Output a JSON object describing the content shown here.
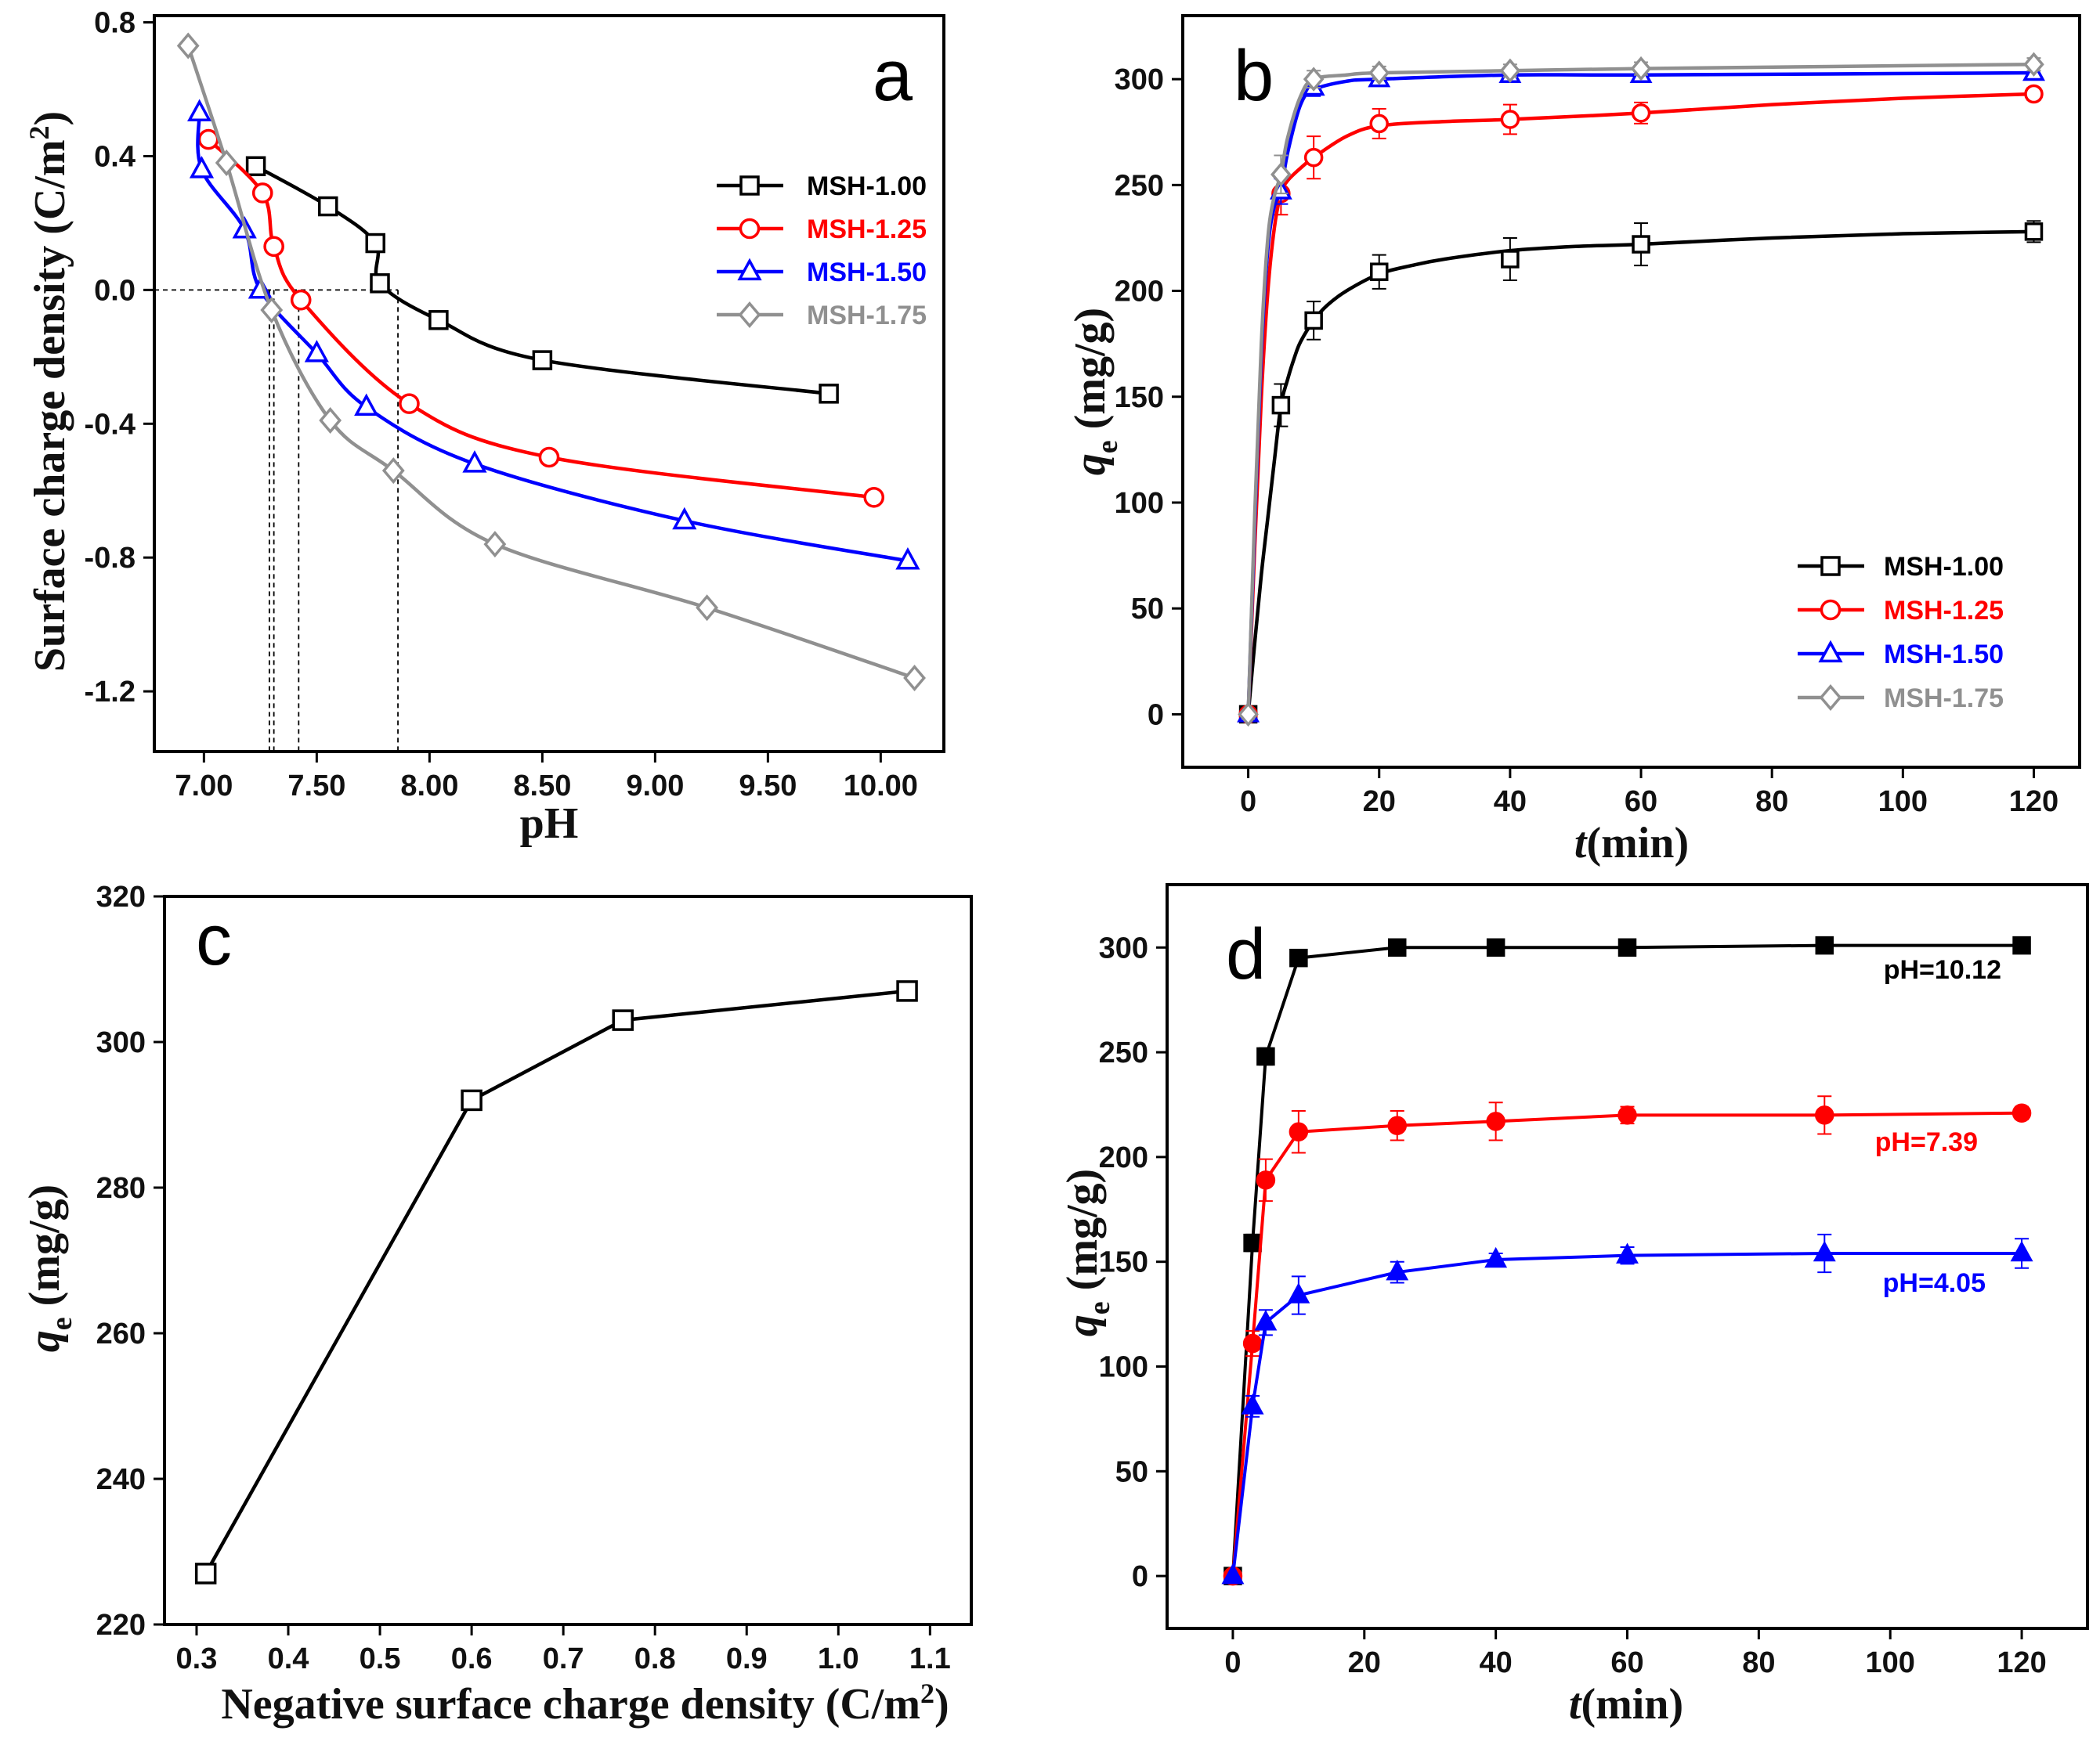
{
  "chart_data": [
    {
      "panel": "a",
      "type": "line",
      "xlabel": "pH",
      "ylabel": "Surface charge density (C/m²)",
      "xlim": [
        6.78,
        10.28
      ],
      "ylim": [
        -1.38,
        0.82
      ],
      "xticks": [
        "7.00",
        "7.50",
        "8.00",
        "8.50",
        "9.00",
        "9.50",
        "10.00"
      ],
      "xtick_values": [
        7.0,
        7.5,
        8.0,
        8.5,
        9.0,
        9.5,
        10.0
      ],
      "yticks": [
        "0.8",
        "0.4",
        "0.0",
        "-0.4",
        "-0.8",
        "-1.2"
      ],
      "ytick_values": [
        0.8,
        0.4,
        0.0,
        -0.4,
        -0.8,
        -1.2
      ],
      "zero_line": true,
      "pzc": [
        7.29,
        7.31,
        7.42,
        7.86
      ],
      "series": [
        {
          "name": "MSH-1.00",
          "color": "#000000",
          "marker": "square",
          "x": [
            7.23,
            7.55,
            7.76,
            7.78,
            8.04,
            8.5,
            9.77
          ],
          "y": [
            0.37,
            0.25,
            0.14,
            0.02,
            -0.09,
            -0.21,
            -0.31
          ]
        },
        {
          "name": "MSH-1.25",
          "color": "#ff0000",
          "marker": "circle",
          "x": [
            7.02,
            7.26,
            7.31,
            7.43,
            7.91,
            8.53,
            9.97
          ],
          "y": [
            0.45,
            0.29,
            0.13,
            -0.03,
            -0.34,
            -0.5,
            -0.62
          ]
        },
        {
          "name": "MSH-1.50",
          "color": "#0000ff",
          "marker": "triangle",
          "x": [
            6.98,
            6.99,
            7.18,
            7.25,
            7.5,
            7.72,
            8.2,
            9.13,
            10.12
          ],
          "y": [
            0.53,
            0.36,
            0.18,
            0.0,
            -0.19,
            -0.35,
            -0.52,
            -0.69,
            -0.81
          ]
        },
        {
          "name": "MSH-1.75",
          "color": "#909090",
          "marker": "diamond",
          "x": [
            6.93,
            7.1,
            7.3,
            7.56,
            7.84,
            8.29,
            9.23,
            10.15
          ],
          "y": [
            0.73,
            0.38,
            -0.06,
            -0.39,
            -0.54,
            -0.76,
            -0.95,
            -1.16
          ]
        }
      ]
    },
    {
      "panel": "b",
      "type": "line",
      "xlabel_italic": "t",
      "xlabel_rest": "(min)",
      "ylabel_main": "q",
      "ylabel_sub": "e",
      "ylabel_rest": " (mg/g)",
      "xlim": [
        -10,
        127
      ],
      "ylim": [
        -25,
        330
      ],
      "xticks": [
        "0",
        "20",
        "40",
        "60",
        "80",
        "100",
        "120"
      ],
      "xtick_values": [
        0,
        20,
        40,
        60,
        80,
        100,
        120
      ],
      "yticks": [
        "0",
        "50",
        "100",
        "150",
        "200",
        "250",
        "300"
      ],
      "ytick_values": [
        0,
        50,
        100,
        150,
        200,
        250,
        300
      ],
      "series": [
        {
          "name": "MSH-1.00",
          "color": "#000000",
          "marker": "square",
          "x": [
            0,
            5,
            10,
            20,
            40,
            60,
            120
          ],
          "y": [
            0,
            146,
            186,
            209,
            215,
            222,
            228
          ],
          "err": [
            0,
            10,
            9,
            8,
            10,
            10,
            5
          ],
          "curve_x": [
            0,
            1,
            2,
            3,
            4,
            5,
            6,
            7,
            8,
            10,
            12,
            15,
            20,
            25,
            30,
            40,
            50,
            60,
            80,
            100,
            120
          ],
          "curve_y": [
            0,
            34,
            66,
            93,
            120,
            146,
            158,
            168,
            176,
            186,
            193,
            200,
            208,
            212,
            215,
            219,
            221,
            222,
            225,
            227,
            228
          ]
        },
        {
          "name": "MSH-1.25",
          "color": "#ff0000",
          "marker": "circle",
          "x": [
            0,
            5,
            10,
            20,
            40,
            60,
            120
          ],
          "y": [
            0,
            246,
            263,
            279,
            281,
            284,
            293
          ],
          "err": [
            0,
            10,
            10,
            7,
            7,
            5,
            3
          ],
          "curve_x": [
            0,
            1,
            2,
            3,
            4,
            5,
            6,
            8,
            10,
            15,
            20,
            30,
            40,
            60,
            80,
            100,
            120
          ],
          "curve_y": [
            0,
            80,
            150,
            200,
            230,
            246,
            252,
            258,
            263,
            273,
            278,
            280,
            281,
            284,
            288,
            291,
            293
          ]
        },
        {
          "name": "MSH-1.50",
          "color": "#0000ff",
          "marker": "triangle",
          "x": [
            0,
            5,
            10,
            20,
            40,
            60,
            120
          ],
          "y": [
            0,
            247,
            296,
            300,
            302,
            302,
            303
          ],
          "err": [
            0,
            6,
            4,
            3,
            3,
            3,
            3
          ],
          "curve_x": [
            0,
            1,
            2,
            3,
            4,
            5,
            6,
            8,
            10,
            15,
            20,
            40,
            60,
            120
          ],
          "curve_y": [
            0,
            90,
            170,
            220,
            240,
            247,
            265,
            288,
            295,
            299,
            300,
            302,
            302,
            303
          ]
        },
        {
          "name": "MSH-1.75",
          "color": "#909090",
          "marker": "diamond",
          "x": [
            0,
            5,
            10,
            20,
            40,
            60,
            120
          ],
          "y": [
            0,
            255,
            300,
            303,
            304,
            305,
            307
          ],
          "err": [
            0,
            9,
            4,
            3,
            3,
            3,
            3
          ],
          "curve_x": [
            0,
            1,
            2,
            3,
            4,
            5,
            6,
            8,
            10,
            15,
            20,
            40,
            60,
            120
          ],
          "curve_y": [
            0,
            95,
            175,
            225,
            245,
            255,
            272,
            292,
            300,
            302,
            303,
            304,
            305,
            307
          ]
        }
      ]
    },
    {
      "panel": "c",
      "type": "line",
      "xlabel": "Negative surface charge density (C/m²)",
      "ylabel_main": "q",
      "ylabel_sub": "e",
      "ylabel_rest": " (mg/g)",
      "xlim": [
        0.265,
        1.145
      ],
      "ylim": [
        220,
        320
      ],
      "xticks": [
        "0.3",
        "0.4",
        "0.5",
        "0.6",
        "0.7",
        "0.8",
        "0.9",
        "1.0",
        "1.1"
      ],
      "xtick_values": [
        0.3,
        0.4,
        0.5,
        0.6,
        0.7,
        0.8,
        0.9,
        1.0,
        1.1
      ],
      "yticks": [
        "220",
        "240",
        "260",
        "280",
        "300",
        "320"
      ],
      "ytick_values": [
        220,
        240,
        260,
        280,
        300,
        320
      ],
      "series": [
        {
          "name": "qe",
          "color": "#000000",
          "marker": "square",
          "x": [
            0.31,
            0.6,
            0.765,
            1.075
          ],
          "y": [
            227,
            292,
            303,
            307
          ]
        }
      ]
    },
    {
      "panel": "d",
      "type": "line",
      "xlabel_italic": "t",
      "xlabel_rest": "(min)",
      "ylabel_main": "q",
      "ylabel_sub": "e",
      "ylabel_rest": " (mg/g)",
      "xlim": [
        -10,
        130
      ],
      "ylim": [
        -25,
        330
      ],
      "xticks": [
        "0",
        "20",
        "40",
        "60",
        "80",
        "100",
        "120"
      ],
      "xtick_values": [
        0,
        20,
        40,
        60,
        80,
        100,
        120
      ],
      "yticks": [
        "0",
        "50",
        "100",
        "150",
        "200",
        "250",
        "300"
      ],
      "ytick_values": [
        0,
        50,
        100,
        150,
        200,
        250,
        300
      ],
      "series": [
        {
          "name": "pH=10.12",
          "color": "#000000",
          "marker": "filled-square",
          "x": [
            0,
            3,
            5,
            10,
            25,
            40,
            60,
            90,
            120
          ],
          "y": [
            0,
            159,
            248,
            295,
            300,
            300,
            300,
            301,
            301
          ],
          "err": [
            0,
            4,
            4,
            3,
            2,
            2,
            2,
            2,
            2
          ]
        },
        {
          "name": "pH=7.39",
          "color": "#ff0000",
          "marker": "filled-circle",
          "x": [
            0,
            3,
            5,
            10,
            25,
            40,
            60,
            90,
            120
          ],
          "y": [
            0,
            111,
            189,
            212,
            215,
            217,
            220,
            220,
            221
          ],
          "err": [
            0,
            6,
            10,
            10,
            7,
            9,
            4,
            9,
            3
          ]
        },
        {
          "name": "pH=4.05",
          "color": "#0000ff",
          "marker": "filled-triangle",
          "x": [
            0,
            3,
            5,
            10,
            25,
            40,
            60,
            90,
            120
          ],
          "y": [
            0,
            81,
            121,
            134,
            145,
            151,
            153,
            154,
            154
          ],
          "err": [
            0,
            5,
            6,
            9,
            5,
            3,
            4,
            9,
            7
          ]
        }
      ]
    }
  ],
  "labels": {
    "panel_a": "a",
    "panel_b": "b",
    "panel_c": "c",
    "panel_d": "d",
    "a_xlabel": "pH",
    "a_ylabel": "Surface charge density (C/m",
    "a_ylabel_sup": "2",
    "a_ylabel_end": ")",
    "b_xlabel_t": "t",
    "b_xlabel_rest": "(min)",
    "c_xlabel": "Negative surface charge density (C/m",
    "c_xlabel_sup": "2",
    "c_xlabel_end": ")",
    "d_xlabel_t": "t",
    "d_xlabel_rest": "(min)",
    "qe_q": "q",
    "qe_e": "e",
    "qe_unit": " (mg/g)"
  }
}
